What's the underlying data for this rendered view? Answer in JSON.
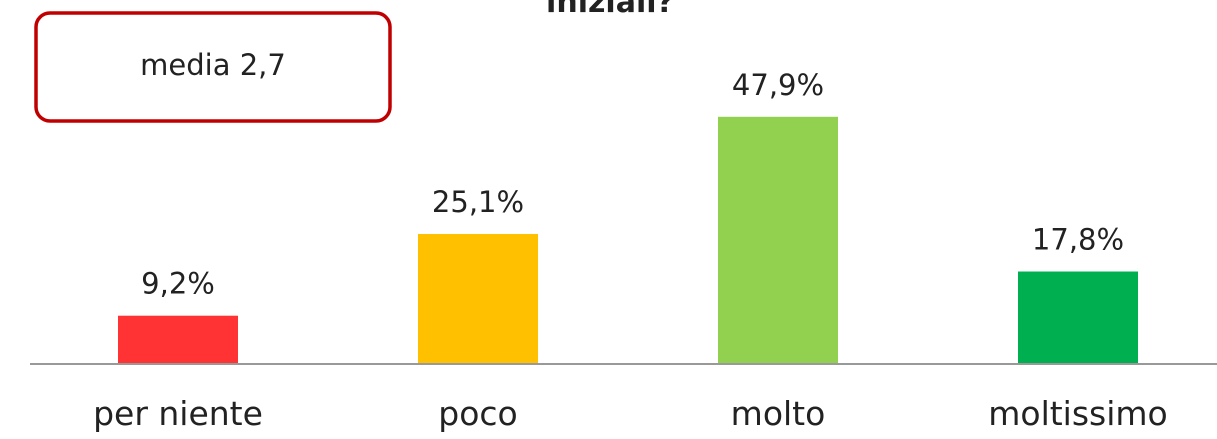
{
  "chart_data": {
    "type": "bar",
    "title": "iniziali?",
    "categories": [
      "per niente",
      "poco",
      "molto",
      "moltissimo"
    ],
    "values": [
      9.2,
      25.1,
      47.9,
      17.8
    ],
    "value_labels": [
      "9,2%",
      "25,1%",
      "47,9%",
      "17,8%"
    ],
    "colors": [
      "#ff3333",
      "#ffc000",
      "#92d050",
      "#00b050"
    ],
    "annotation": "media 2,7"
  }
}
